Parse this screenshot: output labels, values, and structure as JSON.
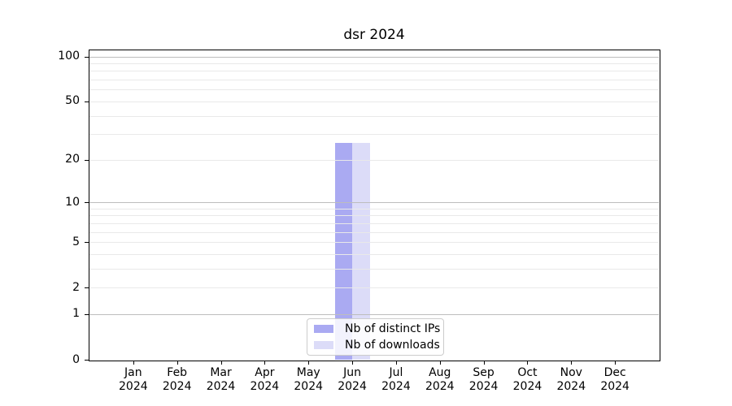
{
  "title": "dsr 2024",
  "chart_data": {
    "type": "bar",
    "title": "dsr 2024",
    "categories": [
      "Jan",
      "Feb",
      "Mar",
      "Apr",
      "May",
      "Jun",
      "Jul",
      "Aug",
      "Sep",
      "Oct",
      "Nov",
      "Dec"
    ],
    "year_label": "2024",
    "series": [
      {
        "name": "Nb of distinct IPs",
        "color": "#aaaaf2",
        "values": [
          0,
          0,
          0,
          0,
          0,
          26,
          0,
          0,
          0,
          0,
          0,
          0
        ]
      },
      {
        "name": "Nb of downloads",
        "color": "#dcdcf8",
        "values": [
          0,
          0,
          0,
          0,
          0,
          26,
          0,
          0,
          0,
          0,
          0,
          0
        ]
      }
    ],
    "yscale": "log1p",
    "ylim": [
      0,
      110
    ],
    "yticks": [
      0,
      1,
      2,
      5,
      10,
      20,
      50,
      100
    ],
    "major_gridlines": [
      1,
      10,
      100
    ],
    "minor_gridlines": [
      2,
      3,
      4,
      5,
      6,
      7,
      8,
      9,
      20,
      30,
      40,
      50,
      60,
      70,
      80,
      90
    ],
    "grid": "horizontal",
    "legend_position": "lower center"
  },
  "colors": {
    "background": "#ffffff",
    "bar_distinct_ips": "#aaaaf2",
    "bar_downloads": "#dcdcf8",
    "major_gridline": "#bdbdbd",
    "minor_gridline": "#e9e9e9",
    "axis": "#000000",
    "text": "#000000",
    "legend_border": "#cccccc"
  }
}
